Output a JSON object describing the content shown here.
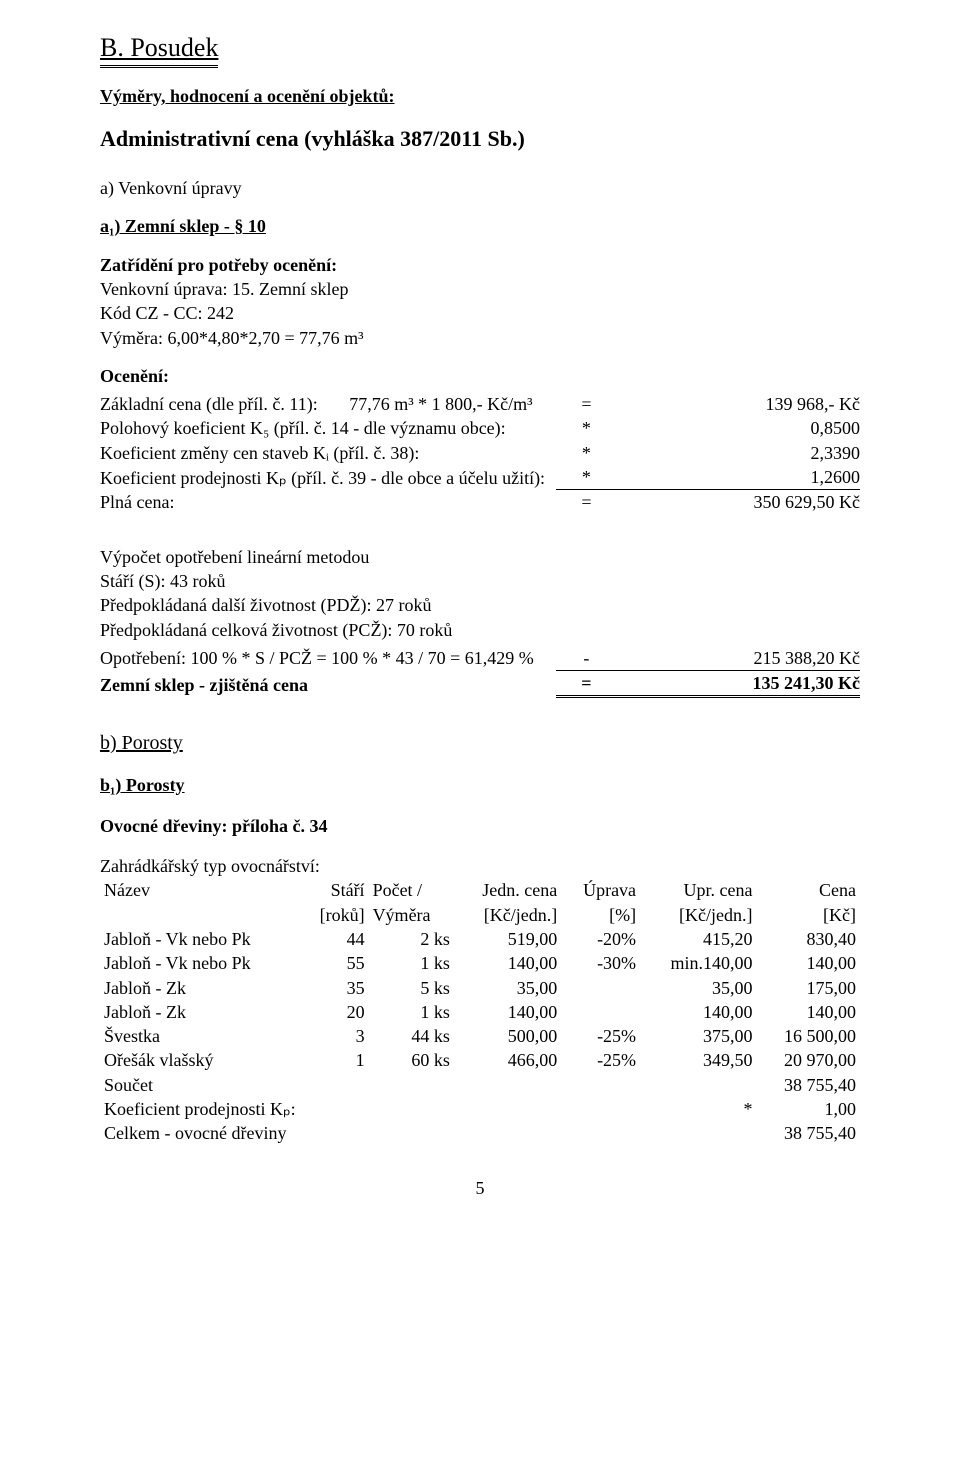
{
  "section_title": "B. Posudek",
  "sub_heading": "Výměry, hodnocení a ocenění objektů:",
  "admin_heading": "Administrativní cena (vyhláška 387/2011 Sb.)",
  "a_label": "a) Venkovní úpravy",
  "a1_label": "a₁) Zemní sklep - § 10",
  "zatrideni_label": "Zatřídění pro potřeby ocenění:",
  "venkovni_line": "Venkovní úprava: 15. Zemní sklep",
  "kod_line": "Kód CZ - CC: 242",
  "vymera_line": "Výměra: 6,00*4,80*2,70 = 77,76 m³",
  "oceneni_label": "Ocenění:",
  "calc": {
    "row1": {
      "label_a": "Základní cena (dle příl. č. 11):",
      "label_b": "77,76 m³ * 1 800,- Kč/m³",
      "op": "=",
      "val": "139 968,- Kč"
    },
    "row2": {
      "label": "Polohový koeficient K₅ (příl. č. 14 - dle významu obce):",
      "op": "*",
      "val": "0,8500"
    },
    "row3": {
      "label": "Koeficient změny cen staveb Kᵢ (příl. č. 38):",
      "op": "*",
      "val": "2,3390"
    },
    "row4": {
      "label": "Koeficient prodejnosti Kₚ (příl. č. 39 - dle obce a účelu užití):",
      "op": "*",
      "val": "1,2600"
    },
    "row5": {
      "label": "Plná cena:",
      "op": "=",
      "val": "350 629,50 Kč"
    }
  },
  "opot_heading": "Výpočet opotřebení lineární metodou",
  "opot_l1": "Stáří (S): 43 roků",
  "opot_l2": "Předpokládaná další životnost (PDŽ): 27 roků",
  "opot_l3": "Předpokládaná celková životnost (PCŽ): 70 roků",
  "opot_row": {
    "label": "Opotřebení: 100 % * S / PCŽ = 100 % * 43 / 70 = 61,429 %",
    "op": "-",
    "val": "215 388,20 Kč"
  },
  "final_row": {
    "label": "Zemní sklep - zjištěná cena",
    "op": "=",
    "val": "135 241,30 Kč"
  },
  "b_label": "b) Porosty",
  "b1_label": "b₁) Porosty",
  "ovocne_heading": "Ovocné dřeviny: příloha č. 34",
  "zahrad_line": "Zahrádkářský typ ovocnářství:",
  "table": {
    "headers": {
      "nazev": "Název",
      "stari_a": "Stáří",
      "stari_b": "[roků]",
      "pocet_a": "Počet /",
      "pocet_b": "Výměra",
      "jedn_a": "Jedn. cena",
      "jedn_b": "[Kč/jedn.]",
      "uprava_a": "Úprava",
      "uprava_b": "[%]",
      "upr_a": "Upr. cena",
      "upr_b": "[Kč/jedn.]",
      "cena_a": "Cena",
      "cena_b": "[Kč]"
    },
    "rows": [
      {
        "nazev": "Jabloň - Vk nebo Pk",
        "stari": "44",
        "pocet": "2 ks",
        "jedn": "519,00",
        "uprava": "-20%",
        "upr": "415,20",
        "cena": "830,40"
      },
      {
        "nazev": "Jabloň - Vk nebo Pk",
        "stari": "55",
        "pocet": "1 ks",
        "jedn": "140,00",
        "uprava": "-30%",
        "upr": "min.140,00",
        "cena": "140,00"
      },
      {
        "nazev": "Jabloň - Zk",
        "stari": "35",
        "pocet": "5 ks",
        "jedn": "35,00",
        "uprava": "",
        "upr": "35,00",
        "cena": "175,00"
      },
      {
        "nazev": "Jabloň - Zk",
        "stari": "20",
        "pocet": "1 ks",
        "jedn": "140,00",
        "uprava": "",
        "upr": "140,00",
        "cena": "140,00"
      },
      {
        "nazev": "Švestka",
        "stari": "3",
        "pocet": "44 ks",
        "jedn": "500,00",
        "uprava": "-25%",
        "upr": "375,00",
        "cena": "16 500,00"
      },
      {
        "nazev": "Ořešák vlašský",
        "stari": "1",
        "pocet": "60 ks",
        "jedn": "466,00",
        "uprava": "-25%",
        "upr": "349,50",
        "cena": "20 970,00"
      }
    ],
    "soucet": {
      "label": "Součet",
      "val": "38 755,40"
    },
    "koef": {
      "label": "Koeficient prodejnosti Kₚ:",
      "op": "*",
      "val": "1,00"
    },
    "celkem": {
      "label": "Celkem - ovocné dřeviny",
      "val": "38 755,40"
    }
  },
  "page_num": "5"
}
